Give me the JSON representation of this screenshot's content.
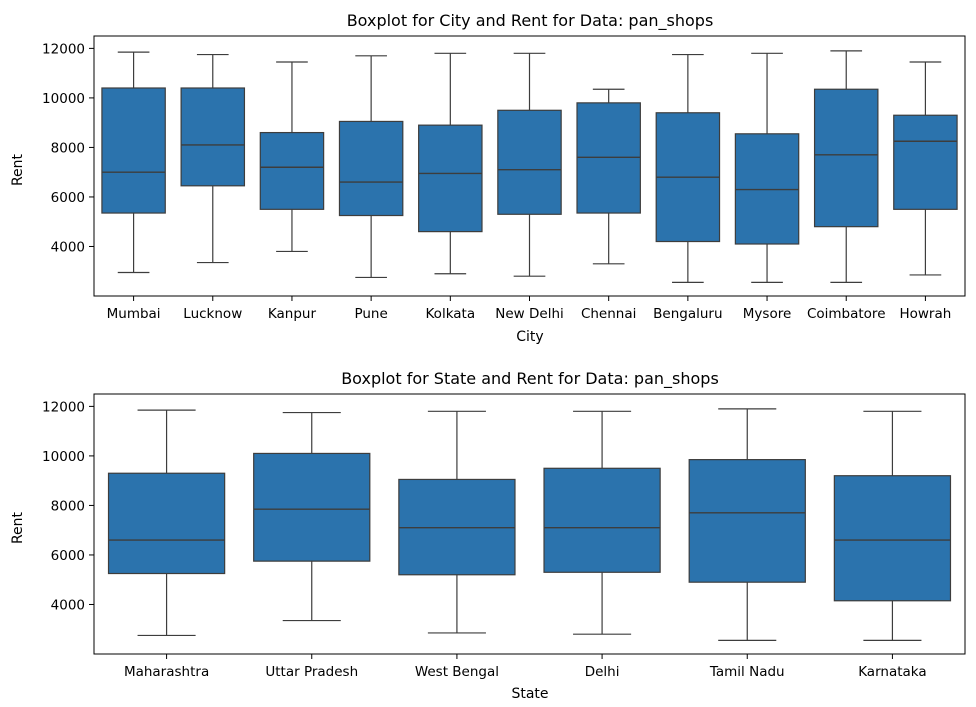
{
  "chart_data": [
    {
      "type": "boxplot",
      "title": "Boxplot for City and Rent for Data: pan_shops",
      "xlabel": "City",
      "ylabel": "Rent",
      "ylim": [
        2000,
        12500
      ],
      "yticks": [
        4000,
        6000,
        8000,
        10000,
        12000
      ],
      "grid": false,
      "color": "#2b73ad",
      "categories": [
        "Mumbai",
        "Lucknow",
        "Kanpur",
        "Pune",
        "Kolkata",
        "New Delhi",
        "Chennai",
        "Bengaluru",
        "Mysore",
        "Coimbatore",
        "Howrah"
      ],
      "boxes": [
        {
          "min": 2950,
          "q1": 5350,
          "median": 7000,
          "q3": 10400,
          "max": 11850
        },
        {
          "min": 3350,
          "q1": 6450,
          "median": 8100,
          "q3": 10400,
          "max": 11750
        },
        {
          "min": 3800,
          "q1": 5500,
          "median": 7200,
          "q3": 8600,
          "max": 11450
        },
        {
          "min": 2750,
          "q1": 5250,
          "median": 6600,
          "q3": 9050,
          "max": 11700
        },
        {
          "min": 2900,
          "q1": 4600,
          "median": 6950,
          "q3": 8900,
          "max": 11800
        },
        {
          "min": 2800,
          "q1": 5300,
          "median": 7100,
          "q3": 9500,
          "max": 11800
        },
        {
          "min": 3300,
          "q1": 5350,
          "median": 7600,
          "q3": 9800,
          "max": 10350
        },
        {
          "min": 2550,
          "q1": 4200,
          "median": 6800,
          "q3": 9400,
          "max": 11750
        },
        {
          "min": 2550,
          "q1": 4100,
          "median": 6300,
          "q3": 8550,
          "max": 11800
        },
        {
          "min": 2550,
          "q1": 4800,
          "median": 7700,
          "q3": 10350,
          "max": 11900
        },
        {
          "min": 2850,
          "q1": 5500,
          "median": 8250,
          "q3": 9300,
          "max": 11450
        }
      ]
    },
    {
      "type": "boxplot",
      "title": "Boxplot for State and Rent for Data: pan_shops",
      "xlabel": "State",
      "ylabel": "Rent",
      "ylim": [
        2000,
        12500
      ],
      "yticks": [
        4000,
        6000,
        8000,
        10000,
        12000
      ],
      "grid": false,
      "color": "#2b73ad",
      "categories": [
        "Maharashtra",
        "Uttar Pradesh",
        "West Bengal",
        "Delhi",
        "Tamil Nadu",
        "Karnataka"
      ],
      "boxes": [
        {
          "min": 2750,
          "q1": 5250,
          "median": 6600,
          "q3": 9300,
          "max": 11850
        },
        {
          "min": 3350,
          "q1": 5750,
          "median": 7850,
          "q3": 10100,
          "max": 11750
        },
        {
          "min": 2850,
          "q1": 5200,
          "median": 7100,
          "q3": 9050,
          "max": 11800
        },
        {
          "min": 2800,
          "q1": 5300,
          "median": 7100,
          "q3": 9500,
          "max": 11800
        },
        {
          "min": 2550,
          "q1": 4900,
          "median": 7700,
          "q3": 9850,
          "max": 11900
        },
        {
          "min": 2550,
          "q1": 4150,
          "median": 6600,
          "q3": 9200,
          "max": 11800
        }
      ]
    }
  ]
}
